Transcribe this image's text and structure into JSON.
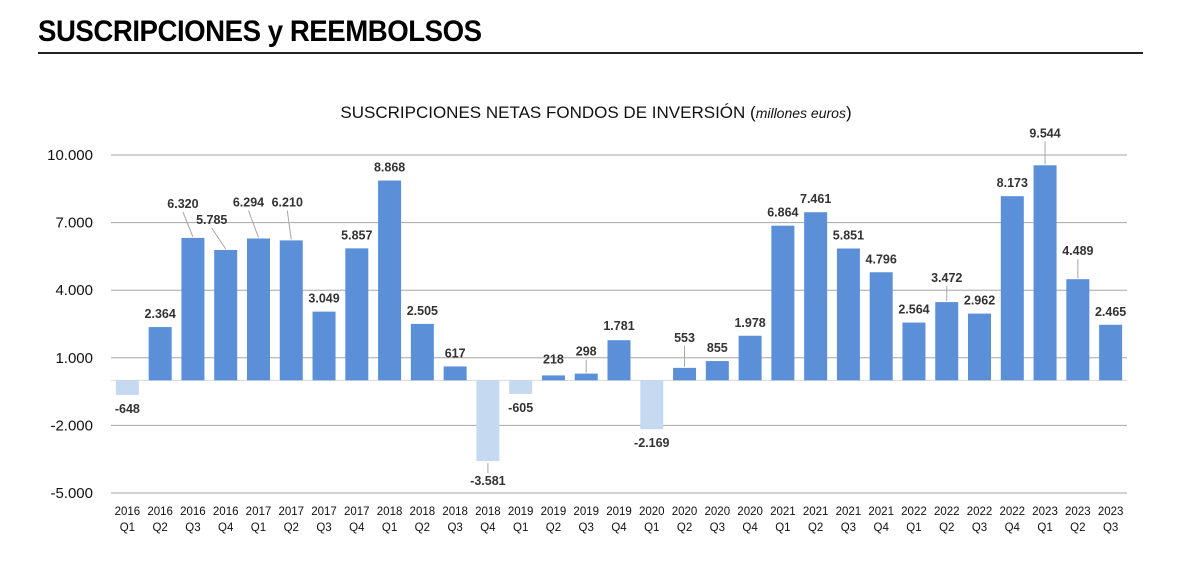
{
  "header": {
    "title": "SUSCRIPCIONES y REEMBOLSOS"
  },
  "colors": {
    "positive": "#5b8fd8",
    "negative": "#c5d9f1",
    "grid": "#a6a6a6"
  },
  "chart_data": {
    "type": "bar",
    "title": "SUSCRIPCIONES NETAS FONDOS DE INVERSIÓN",
    "title_unit": "millones euros",
    "xlabel": "",
    "ylabel": "",
    "ylim": [
      -5000,
      10000
    ],
    "yticks": [
      -5000,
      -2000,
      1000,
      4000,
      7000,
      10000
    ],
    "ytick_labels": [
      "-5.000",
      "-2.000",
      "1.000",
      "4.000",
      "7.000",
      "10.000"
    ],
    "grid": true,
    "categories": [
      [
        "2016",
        "Q1"
      ],
      [
        "2016",
        "Q2"
      ],
      [
        "2016",
        "Q3"
      ],
      [
        "2016",
        "Q4"
      ],
      [
        "2017",
        "Q1"
      ],
      [
        "2017",
        "Q2"
      ],
      [
        "2017",
        "Q3"
      ],
      [
        "2017",
        "Q4"
      ],
      [
        "2018",
        "Q1"
      ],
      [
        "2018",
        "Q2"
      ],
      [
        "2018",
        "Q3"
      ],
      [
        "2018",
        "Q4"
      ],
      [
        "2019",
        "Q1"
      ],
      [
        "2019",
        "Q2"
      ],
      [
        "2019",
        "Q3"
      ],
      [
        "2019",
        "Q4"
      ],
      [
        "2020",
        "Q1"
      ],
      [
        "2020",
        "Q2"
      ],
      [
        "2020",
        "Q3"
      ],
      [
        "2020",
        "Q4"
      ],
      [
        "2021",
        "Q1"
      ],
      [
        "2021",
        "Q2"
      ],
      [
        "2021",
        "Q3"
      ],
      [
        "2021",
        "Q4"
      ],
      [
        "2022",
        "Q1"
      ],
      [
        "2022",
        "Q2"
      ],
      [
        "2022",
        "Q3"
      ],
      [
        "2022",
        "Q4"
      ],
      [
        "2023",
        "Q1"
      ],
      [
        "2023",
        "Q2"
      ],
      [
        "2023",
        "Q3"
      ]
    ],
    "values": [
      -648,
      2364,
      6320,
      5785,
      6294,
      6210,
      3049,
      5857,
      8868,
      2505,
      617,
      -3581,
      -605,
      218,
      298,
      1781,
      -2169,
      553,
      855,
      1978,
      6864,
      7461,
      5851,
      4796,
      2564,
      3472,
      2962,
      8173,
      9544,
      4489,
      2465
    ],
    "value_labels": [
      "-648",
      "2.364",
      "6.320",
      "5.785",
      "6.294",
      "6.210",
      "3.049",
      "5.857",
      "8.868",
      "2.505",
      "617",
      "-3.581",
      "-605",
      "218",
      "298",
      "1.781",
      "-2.169",
      "553",
      "855",
      "1.978",
      "6.864",
      "7.461",
      "5.851",
      "4.796",
      "2.564",
      "3.472",
      "2.962",
      "8.173",
      "9.544",
      "4.489",
      "2.465"
    ]
  }
}
